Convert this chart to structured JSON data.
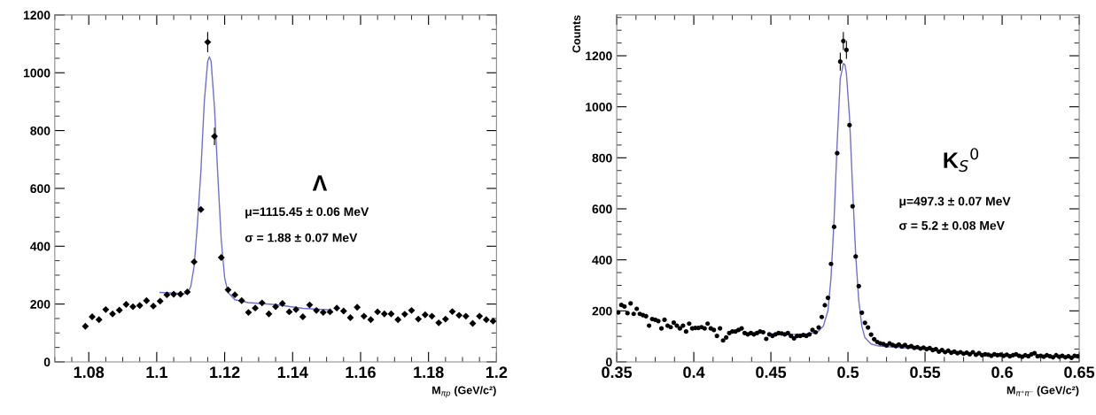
{
  "chart_data": [
    {
      "type": "scatter",
      "xlabel": "M$_{πp}$ (GeV/c²)",
      "xlim": [
        1.07,
        1.2
      ],
      "xticks": [
        1.08,
        1.1,
        1.12,
        1.14,
        1.16,
        1.18,
        1.2
      ],
      "ylim": [
        0,
        1200
      ],
      "yticks": [
        0,
        200,
        400,
        600,
        800,
        1000,
        1200
      ],
      "grid": false,
      "legend": false,
      "annotations": [
        "Λ",
        "μ=1115.45 ± 0.06 MeV",
        "σ = 1.88 ± 0.07 MeV"
      ],
      "series": [
        {
          "color": "#000000",
          "marker": "diamond",
          "x": [
            1.079,
            1.081,
            1.083,
            1.085,
            1.087,
            1.089,
            1.091,
            1.093,
            1.095,
            1.097,
            1.099,
            1.101,
            1.103,
            1.105,
            1.107,
            1.109,
            1.111,
            1.113,
            1.115,
            1.117,
            1.119,
            1.121,
            1.123,
            1.125,
            1.127,
            1.129,
            1.131,
            1.133,
            1.135,
            1.137,
            1.139,
            1.141,
            1.143,
            1.145,
            1.147,
            1.149,
            1.151,
            1.153,
            1.155,
            1.157,
            1.159,
            1.161,
            1.163,
            1.165,
            1.167,
            1.169,
            1.171,
            1.173,
            1.175,
            1.177,
            1.179,
            1.181,
            1.183,
            1.185,
            1.187,
            1.189,
            1.191,
            1.193,
            1.195,
            1.197,
            1.199
          ],
          "values": [
            123,
            156,
            146,
            181,
            166,
            179,
            199,
            191,
            195,
            212,
            193,
            210,
            232,
            234,
            234,
            242,
            346,
            527,
            1106,
            780,
            361,
            249,
            232,
            212,
            171,
            186,
            204,
            166,
            191,
            202,
            173,
            181,
            156,
            197,
            178,
            171,
            173,
            186,
            176,
            153,
            189,
            158,
            146,
            173,
            166,
            166,
            146,
            165,
            178,
            148,
            163,
            158,
            135,
            148,
            174,
            161,
            158,
            133,
            158,
            146,
            141
          ],
          "errors": [
            null,
            null,
            null,
            null,
            null,
            null,
            null,
            null,
            null,
            null,
            null,
            null,
            null,
            null,
            null,
            null,
            null,
            null,
            35,
            30,
            null,
            null,
            null,
            null,
            null,
            null,
            null,
            null,
            null,
            null,
            null,
            null,
            null,
            null,
            null,
            null,
            null,
            null,
            null,
            null,
            null,
            null,
            null,
            null,
            null,
            null,
            null,
            null,
            null,
            null,
            null,
            null,
            null,
            null,
            null,
            null,
            null,
            null,
            null,
            null,
            null
          ]
        },
        {
          "type": "line",
          "color": "#7070d0",
          "marker": "none",
          "line_style": "solid",
          "x": [
            1.101,
            1.105,
            1.109,
            1.11,
            1.111,
            1.112,
            1.113,
            1.114,
            1.115,
            1.1155,
            1.116,
            1.117,
            1.118,
            1.119,
            1.12,
            1.121,
            1.123,
            1.127,
            1.135,
            1.143,
            1.151
          ],
          "values": [
            240,
            238,
            236,
            260,
            330,
            480,
            660,
            900,
            1040,
            1055,
            1040,
            880,
            640,
            420,
            290,
            240,
            215,
            205,
            198,
            185,
            180
          ]
        }
      ]
    },
    {
      "type": "scatter",
      "xlabel": "M$_{π⁺π⁻}$ (GeV/c²)",
      "ylabel": "Counts",
      "xlim": [
        0.35,
        0.65
      ],
      "xticks": [
        0.35,
        0.4,
        0.45,
        0.5,
        0.55,
        0.6,
        0.65
      ],
      "ylim": [
        0,
        1360
      ],
      "yticks": [
        0,
        200,
        400,
        600,
        800,
        1000,
        1200
      ],
      "grid": false,
      "legend": false,
      "annotations": [
        "K$_{S}$$^{0}$",
        "μ=497.3 ± 0.07 MeV",
        "σ = 5.2 ± 0.08 MeV"
      ],
      "series": [
        {
          "color": "#000000",
          "marker": "circle",
          "x": [
            0.351,
            0.353,
            0.355,
            0.357,
            0.359,
            0.361,
            0.363,
            0.365,
            0.367,
            0.369,
            0.371,
            0.373,
            0.375,
            0.377,
            0.379,
            0.381,
            0.383,
            0.385,
            0.387,
            0.389,
            0.391,
            0.393,
            0.395,
            0.397,
            0.399,
            0.401,
            0.403,
            0.405,
            0.407,
            0.409,
            0.411,
            0.413,
            0.415,
            0.417,
            0.419,
            0.421,
            0.423,
            0.425,
            0.427,
            0.429,
            0.431,
            0.433,
            0.435,
            0.437,
            0.439,
            0.441,
            0.443,
            0.445,
            0.447,
            0.449,
            0.451,
            0.453,
            0.455,
            0.457,
            0.459,
            0.461,
            0.463,
            0.465,
            0.467,
            0.469,
            0.471,
            0.473,
            0.475,
            0.477,
            0.479,
            0.481,
            0.483,
            0.485,
            0.487,
            0.489,
            0.491,
            0.493,
            0.495,
            0.497,
            0.499,
            0.501,
            0.503,
            0.505,
            0.507,
            0.509,
            0.511,
            0.513,
            0.515,
            0.517,
            0.519,
            0.521,
            0.523,
            0.525,
            0.527,
            0.529,
            0.531,
            0.533,
            0.535,
            0.537,
            0.539,
            0.541,
            0.543,
            0.545,
            0.547,
            0.549,
            0.551,
            0.553,
            0.555,
            0.557,
            0.559,
            0.561,
            0.563,
            0.565,
            0.567,
            0.569,
            0.571,
            0.573,
            0.575,
            0.577,
            0.579,
            0.581,
            0.583,
            0.585,
            0.587,
            0.589,
            0.591,
            0.593,
            0.595,
            0.597,
            0.599,
            0.601,
            0.603,
            0.605,
            0.607,
            0.609,
            0.611,
            0.613,
            0.615,
            0.617,
            0.619,
            0.621,
            0.623,
            0.625,
            0.627,
            0.629,
            0.631,
            0.633,
            0.635,
            0.637,
            0.639,
            0.641,
            0.643,
            0.645,
            0.647,
            0.649
          ],
          "values": [
            194,
            223,
            217,
            191,
            229,
            188,
            208,
            188,
            183,
            179,
            142,
            168,
            165,
            160,
            131,
            165,
            142,
            136,
            154,
            142,
            131,
            142,
            119,
            150,
            131,
            133,
            133,
            136,
            131,
            150,
            131,
            125,
            102,
            131,
            84,
            96,
            113,
            119,
            119,
            125,
            131,
            113,
            108,
            113,
            108,
            113,
            119,
            116,
            90,
            108,
            102,
            108,
            113,
            111,
            108,
            113,
            102,
            92,
            102,
            102,
            105,
            102,
            108,
            125,
            116,
            135,
            176,
            222,
            251,
            384,
            529,
            818,
            1177,
            1258,
            1223,
            928,
            610,
            413,
            297,
            193,
            153,
            135,
            107,
            89,
            78,
            72,
            70,
            64,
            72,
            66,
            62,
            68,
            60,
            66,
            58,
            62,
            55,
            58,
            52,
            56,
            50,
            54,
            46,
            50,
            40,
            46,
            38,
            44,
            36,
            40,
            34,
            38,
            32,
            36,
            30,
            38,
            28,
            34,
            26,
            30,
            28,
            24,
            30,
            26,
            28,
            24,
            28,
            22,
            26,
            30,
            24,
            20,
            26,
            22,
            30,
            34,
            22,
            24,
            20,
            26,
            22,
            18,
            26,
            20,
            24,
            18,
            22,
            16,
            24,
            22
          ],
          "errors": [
            null,
            null,
            null,
            null,
            null,
            null,
            null,
            null,
            null,
            null,
            null,
            null,
            null,
            null,
            null,
            null,
            null,
            null,
            null,
            null,
            null,
            null,
            null,
            null,
            null,
            null,
            null,
            null,
            null,
            null,
            null,
            null,
            null,
            null,
            null,
            null,
            null,
            null,
            null,
            null,
            null,
            null,
            null,
            null,
            null,
            null,
            null,
            null,
            null,
            null,
            null,
            null,
            null,
            null,
            null,
            null,
            null,
            null,
            null,
            null,
            null,
            null,
            null,
            null,
            null,
            null,
            null,
            null,
            null,
            null,
            null,
            null,
            35,
            35,
            35,
            null,
            null,
            null,
            null,
            null,
            null,
            null,
            null,
            null,
            null,
            null,
            null,
            null,
            null,
            null,
            null,
            null,
            null,
            null,
            null,
            null,
            null,
            null,
            null,
            null,
            null,
            null,
            null,
            null,
            null,
            null,
            null,
            null,
            null,
            null,
            null,
            null,
            null,
            null,
            null,
            null,
            null,
            null,
            null,
            null,
            null,
            null,
            null,
            null,
            null,
            null,
            null,
            null,
            null,
            null,
            null,
            null,
            null,
            null,
            null,
            null,
            null,
            null,
            null,
            null,
            null,
            null,
            null,
            null,
            null,
            null,
            null,
            null,
            null,
            null
          ]
        },
        {
          "type": "line",
          "color": "#7070d0",
          "marker": "none",
          "line_style": "solid",
          "x": [
            0.45,
            0.46,
            0.47,
            0.48,
            0.484,
            0.487,
            0.489,
            0.491,
            0.493,
            0.495,
            0.497,
            0.498,
            0.499,
            0.501,
            0.503,
            0.505,
            0.507,
            0.509,
            0.511,
            0.515,
            0.52,
            0.53,
            0.55
          ],
          "values": [
            110,
            108,
            108,
            115,
            140,
            200,
            330,
            560,
            860,
            1110,
            1170,
            1165,
            1130,
            960,
            680,
            420,
            240,
            140,
            95,
            70,
            62,
            58,
            50
          ]
        }
      ]
    }
  ]
}
